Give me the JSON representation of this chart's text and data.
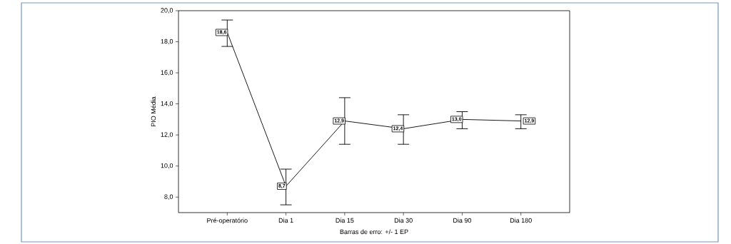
{
  "chart_data": {
    "type": "line",
    "ylabel": "PIO Média",
    "categories": [
      "Pré-operatório",
      "Dia 1",
      "Dia 15",
      "Dia 30",
      "Dia 90",
      "Dia 180"
    ],
    "values": [
      18.6,
      8.7,
      12.9,
      12.4,
      13.0,
      12.9
    ],
    "value_labels": [
      "18,6",
      "8,7",
      "12,9",
      "12,4",
      "13,0",
      "12,9"
    ],
    "errors": [
      [
        17.7,
        19.4
      ],
      [
        7.5,
        9.8
      ],
      [
        11.4,
        14.4
      ],
      [
        11.4,
        13.3
      ],
      [
        12.4,
        13.5
      ],
      [
        12.4,
        13.3
      ]
    ],
    "color": "#000000",
    "marker": "square",
    "line_style": "solid",
    "grid": false,
    "ylim": [
      7.0,
      20.0
    ],
    "yticks": [
      {
        "value": 8,
        "label": "8,0"
      },
      {
        "value": 10,
        "label": "10,0"
      },
      {
        "value": 12,
        "label": "12,0"
      },
      {
        "value": 14,
        "label": "14,0"
      },
      {
        "value": 16,
        "label": "16,0"
      },
      {
        "value": 18,
        "label": "18,0"
      },
      {
        "value": 20,
        "label": "20,0"
      }
    ],
    "annotations": [
      "Barras de erro: +/- 1 EP"
    ]
  }
}
